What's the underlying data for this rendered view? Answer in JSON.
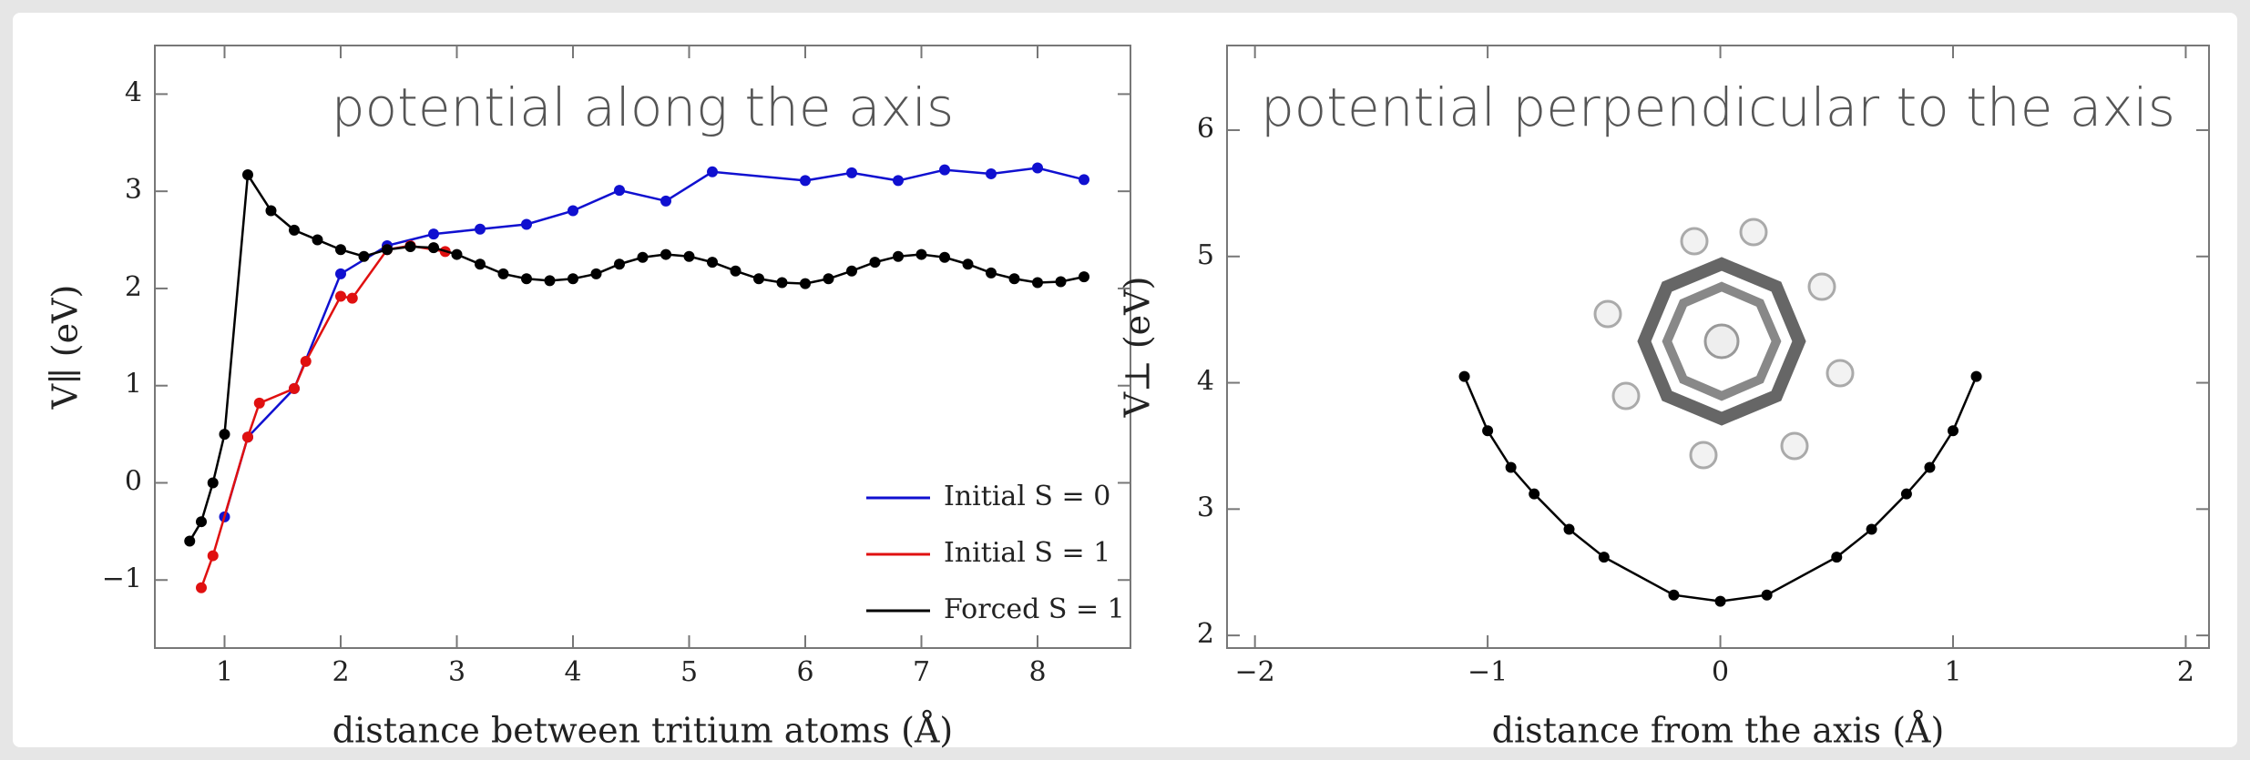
{
  "chart_data": [
    {
      "type": "line",
      "title": "potential along the axis",
      "x_label": "distance between tritium atoms  (Å)",
      "y_label": "V∥  (eV)",
      "xlim": [
        0.4,
        8.8
      ],
      "ylim": [
        -1.7,
        4.5
      ],
      "xticks": [
        1,
        2,
        3,
        4,
        5,
        6,
        7,
        8
      ],
      "yticks": [
        {
          "value": -1,
          "label": "−1"
        },
        0,
        1,
        2,
        3,
        4
      ],
      "legend": "lower right",
      "series": [
        {
          "name": "Initial S = 0",
          "color": "#1010d0",
          "x": [
            1.0,
            1.2,
            1.6,
            2.0,
            2.4,
            2.8,
            3.2,
            3.6,
            4.0,
            4.4,
            4.8,
            5.2,
            6.0,
            6.4,
            6.8,
            7.2,
            7.6,
            8.0,
            8.4
          ],
          "values": [
            -0.35,
            0.47,
            0.97,
            2.15,
            2.44,
            2.56,
            2.61,
            2.66,
            2.8,
            3.01,
            2.9,
            3.2,
            3.11,
            3.19,
            3.11,
            3.22,
            3.18,
            3.24,
            3.12
          ]
        },
        {
          "name": "Initial S = 1",
          "color": "#e01010",
          "x": [
            0.8,
            0.9,
            1.2,
            1.3,
            1.6,
            1.7,
            2.0,
            2.1,
            2.4,
            2.6,
            2.9
          ],
          "values": [
            -1.08,
            -0.75,
            0.47,
            0.82,
            0.97,
            1.25,
            1.92,
            1.9,
            2.4,
            2.44,
            2.38
          ]
        },
        {
          "name": "Forced S = 1",
          "color": "#000000",
          "x": [
            0.7,
            0.8,
            0.9,
            1.0,
            1.2,
            1.4,
            1.6,
            1.8,
            2.0,
            2.2,
            2.4,
            2.6,
            2.8,
            3.0,
            3.2,
            3.4,
            3.6,
            3.8,
            4.0,
            4.2,
            4.4,
            4.6,
            4.8,
            5.0,
            5.2,
            5.4,
            5.6,
            5.8,
            6.0,
            6.2,
            6.4,
            6.6,
            6.8,
            7.0,
            7.2,
            7.4,
            7.6,
            7.8,
            8.0,
            8.2,
            8.4
          ],
          "values": [
            -0.6,
            -0.4,
            0.0,
            0.5,
            3.17,
            2.8,
            2.6,
            2.5,
            2.4,
            2.33,
            2.4,
            2.43,
            2.42,
            2.35,
            2.25,
            2.15,
            2.1,
            2.08,
            2.1,
            2.15,
            2.25,
            2.32,
            2.35,
            2.33,
            2.27,
            2.18,
            2.1,
            2.06,
            2.05,
            2.1,
            2.18,
            2.27,
            2.33,
            2.35,
            2.32,
            2.25,
            2.16,
            2.1,
            2.06,
            2.07,
            2.12
          ]
        }
      ]
    },
    {
      "type": "line",
      "title": "potential perpendicular to the axis",
      "x_label": "distance from the axis  (Å)",
      "y_label": "V⊥  (eV)",
      "xlim": [
        -2.12,
        2.1
      ],
      "ylim": [
        1.9,
        6.67
      ],
      "xticks": [
        {
          "value": -2,
          "label": "−2"
        },
        {
          "value": -1,
          "label": "−1"
        },
        0,
        1,
        2
      ],
      "yticks": [
        2,
        3,
        4,
        5,
        6
      ],
      "series": [
        {
          "color": "#000000",
          "x": [
            -1.1,
            -1.0,
            -0.9,
            -0.8,
            -0.65,
            -0.5,
            -0.2,
            0,
            0.2,
            0.5,
            0.65,
            0.8,
            0.9,
            1.0,
            1.1
          ],
          "values": [
            4.05,
            3.62,
            3.33,
            3.12,
            2.84,
            2.62,
            2.32,
            2.27,
            2.32,
            2.62,
            2.84,
            3.12,
            3.33,
            3.62,
            4.05
          ]
        }
      ]
    }
  ]
}
